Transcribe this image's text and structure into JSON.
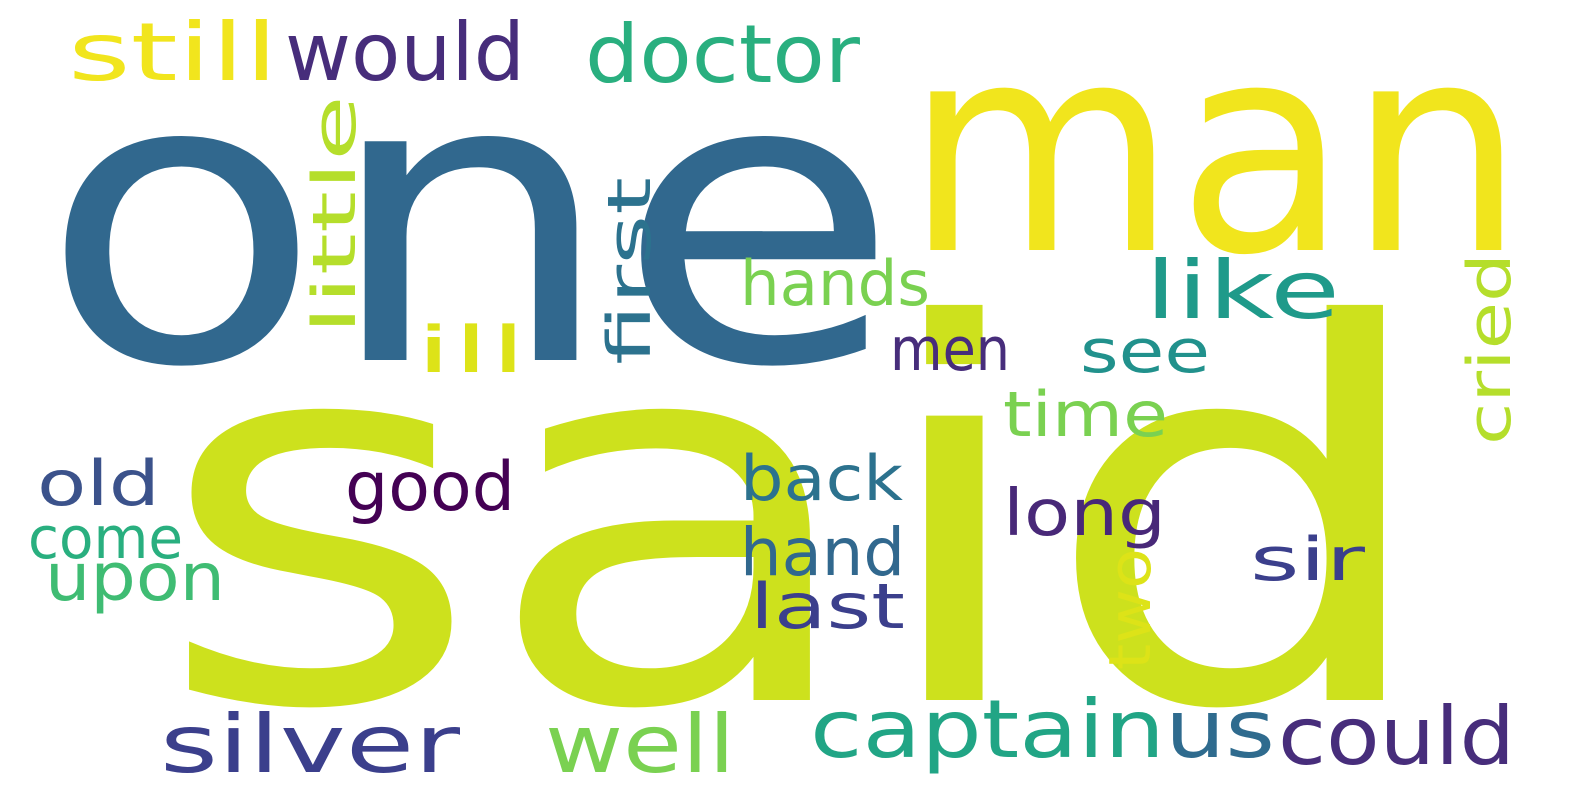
{
  "palette": {
    "background": "#ffffff",
    "dark_purple": "#472d7b",
    "deep_purple": "#440154",
    "indigo": "#3b3f8c",
    "blue": "#31688e",
    "steel_blue": "#2f6b8e",
    "teal_blue": "#2c728e",
    "teal": "#21918c",
    "green_teal": "#29af7f",
    "green": "#5ec962",
    "light_green": "#7ad151",
    "lime": "#cde11d",
    "yellow": "#f1e51d",
    "pale_yellow": "#dde318"
  },
  "words": [
    {
      "id": "one",
      "text": "one",
      "color": "#31688e"
    },
    {
      "id": "man",
      "text": "man",
      "color": "#f1e51d"
    },
    {
      "id": "said",
      "text": "said",
      "color": "#cde11d"
    },
    {
      "id": "still",
      "text": "still",
      "color": "#f1e51d"
    },
    {
      "id": "would",
      "text": "would",
      "color": "#472d7b"
    },
    {
      "id": "doctor",
      "text": "doctor",
      "color": "#29af7f"
    },
    {
      "id": "little",
      "text": "little",
      "color": "#b5de2b"
    },
    {
      "id": "first",
      "text": "first",
      "color": "#2c728e"
    },
    {
      "id": "hands",
      "text": "hands",
      "color": "#7ad151"
    },
    {
      "id": "ill",
      "text": "ill",
      "color": "#dde318"
    },
    {
      "id": "like",
      "text": "like",
      "color": "#1f9a8a"
    },
    {
      "id": "men",
      "text": "men",
      "color": "#472d7b"
    },
    {
      "id": "see",
      "text": "see",
      "color": "#21918c"
    },
    {
      "id": "time",
      "text": "time",
      "color": "#7ad151"
    },
    {
      "id": "cried",
      "text": "cried",
      "color": "#b5de2b"
    },
    {
      "id": "old",
      "text": "old",
      "color": "#3b528b"
    },
    {
      "id": "good",
      "text": "good",
      "color": "#440154"
    },
    {
      "id": "back",
      "text": "back",
      "color": "#2c728e"
    },
    {
      "id": "long",
      "text": "long",
      "color": "#482878"
    },
    {
      "id": "come",
      "text": "come",
      "color": "#29af7f"
    },
    {
      "id": "upon",
      "text": "upon",
      "color": "#3fbc73"
    },
    {
      "id": "hand",
      "text": "hand",
      "color": "#31688e"
    },
    {
      "id": "sir",
      "text": "sir",
      "color": "#3b3f8c"
    },
    {
      "id": "two",
      "text": "two",
      "color": "#dde318"
    },
    {
      "id": "last",
      "text": "last",
      "color": "#3b3f8c"
    },
    {
      "id": "silver",
      "text": "silver",
      "color": "#3b3f8c"
    },
    {
      "id": "well",
      "text": "well",
      "color": "#7ad151"
    },
    {
      "id": "captain",
      "text": "captain",
      "color": "#21a585"
    },
    {
      "id": "us",
      "text": "us",
      "color": "#2f6b8e"
    },
    {
      "id": "could",
      "text": "could",
      "color": "#472d7b"
    }
  ]
}
